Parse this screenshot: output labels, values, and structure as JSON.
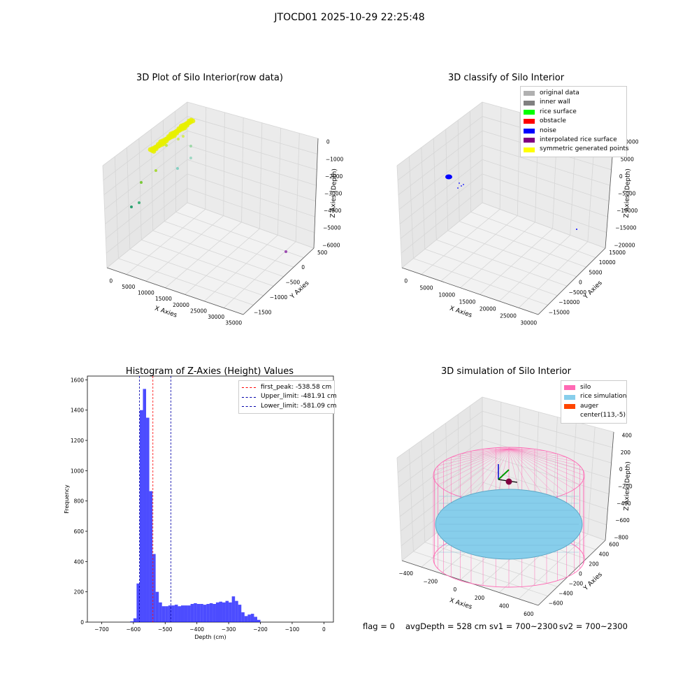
{
  "figure": {
    "suptitle": "JTOCD01 2025-10-29 22:25:48"
  },
  "plot1": {
    "title": "3D Plot of Silo Interior(row data)",
    "xlabel": "X Axies",
    "ylabel": "Y Axies",
    "zlabel": "Z Axies (Depth)",
    "xticks": [
      "0",
      "5000",
      "10000",
      "15000",
      "20000",
      "25000",
      "30000",
      "35000"
    ],
    "yticks": [
      "500",
      "0",
      "−500",
      "−1000",
      "−1500"
    ],
    "zticks": [
      "0",
      "−1000",
      "−2000",
      "−3000",
      "−4000",
      "−5000",
      "−6000"
    ]
  },
  "plot2": {
    "title": "3D classify of Silo Interior",
    "xlabel": "X Axies",
    "ylabel": "Y Axies",
    "zlabel": "Z Axies (Depth)",
    "xticks": [
      "0",
      "5000",
      "10000",
      "15000",
      "20000",
      "25000",
      "30000"
    ],
    "yticks": [
      "15000",
      "10000",
      "5000",
      "0",
      "−5000",
      "−10000",
      "−15000"
    ],
    "zticks": [
      "10000",
      "5000",
      "0",
      "−5000",
      "−10000",
      "−15000",
      "−20000"
    ],
    "legend": [
      {
        "label": "original data",
        "color": "#b0b0b0"
      },
      {
        "label": "inner wall",
        "color": "#808080"
      },
      {
        "label": "rice surface",
        "color": "#00ff00"
      },
      {
        "label": "obstacle",
        "color": "#ff0000"
      },
      {
        "label": "noise",
        "color": "#0000ff"
      },
      {
        "label": "interpolated rice surface",
        "color": "#800080"
      },
      {
        "label": "symmetric generated points",
        "color": "#ffff00"
      }
    ]
  },
  "plot4": {
    "title": "3D simulation of Silo Interior",
    "xlabel": "X Axies",
    "ylabel": "Y Axies",
    "zlabel": "Z Axies (Depth)",
    "xticks": [
      "−400",
      "−200",
      "0",
      "200",
      "400",
      "600"
    ],
    "yticks": [
      "600",
      "400",
      "200",
      "0",
      "−200",
      "−400",
      "−600"
    ],
    "zticks": [
      "400",
      "200",
      "0",
      "−200",
      "−400",
      "−600",
      "−800"
    ],
    "legend": [
      {
        "label": "silo",
        "color": "#ff69b4"
      },
      {
        "label": "rice simulation",
        "color": "#87ceeb"
      },
      {
        "label": "auger",
        "color": "#ff4500"
      },
      {
        "label": "center(113,-5)",
        "color": ""
      }
    ]
  },
  "status": {
    "flag": "flag = 0",
    "avg": "avgDepth = 528 cm",
    "sv1": "sv1 = 700~2300",
    "sv2": "sv2 = 700~2300"
  },
  "chart_data": [
    {
      "type": "scatter",
      "title": "3D Plot of Silo Interior(row data)",
      "xlabel": "X Axies",
      "ylabel": "Y Axies",
      "zlabel": "Z Axies (Depth)",
      "xlim": [
        -1500,
        36000
      ],
      "ylim": [
        -1800,
        900
      ],
      "zlim": [
        -6500,
        500
      ]
    },
    {
      "type": "scatter",
      "title": "3D classify of Silo Interior",
      "xlabel": "X Axies",
      "ylabel": "Y Axies",
      "zlabel": "Z Axies (Depth)",
      "series": [
        {
          "name": "original data"
        },
        {
          "name": "inner wall"
        },
        {
          "name": "rice surface"
        },
        {
          "name": "obstacle"
        },
        {
          "name": "noise"
        },
        {
          "name": "interpolated rice surface"
        },
        {
          "name": "symmetric generated points"
        }
      ],
      "legend_position": "top-right"
    },
    {
      "type": "bar",
      "title": "Histogram of Z-Axies (Height) Values",
      "xlabel": "Depth (cm)",
      "ylabel": "Frequency",
      "xlim": [
        -745,
        30
      ],
      "ylim": [
        0,
        1625
      ],
      "xticks": [
        -700,
        -600,
        -500,
        -400,
        -300,
        -200,
        -100,
        0
      ],
      "yticks": [
        0,
        200,
        400,
        600,
        800,
        1000,
        1200,
        1400,
        1600
      ],
      "bin_start": -610,
      "bin_width": 10,
      "values": [
        5,
        25,
        255,
        1400,
        1540,
        1350,
        865,
        450,
        200,
        130,
        105,
        105,
        110,
        110,
        115,
        105,
        110,
        110,
        110,
        120,
        125,
        120,
        120,
        115,
        120,
        125,
        120,
        130,
        135,
        130,
        140,
        130,
        170,
        140,
        115,
        65,
        40,
        50,
        55,
        35,
        15
      ],
      "color": "#0000ff",
      "vlines": [
        {
          "label": "first_peak: -538.58 cm",
          "x": -538.58,
          "color": "#ff0000"
        },
        {
          "label": "Upper_limit: -481.91 cm",
          "x": -481.91,
          "color": "#0000aa"
        },
        {
          "label": "Lower_limit: -581.09 cm",
          "x": -581.09,
          "color": "#0000aa"
        }
      ],
      "legend_position": "top-right"
    },
    {
      "type": "scatter",
      "title": "3D simulation of Silo Interior",
      "xlabel": "X Axies",
      "ylabel": "Y Axies",
      "zlabel": "Z Axies (Depth)",
      "series": [
        {
          "name": "silo"
        },
        {
          "name": "rice simulation"
        },
        {
          "name": "auger"
        },
        {
          "name": "center(113,-5)"
        }
      ],
      "legend_position": "top-right"
    }
  ]
}
